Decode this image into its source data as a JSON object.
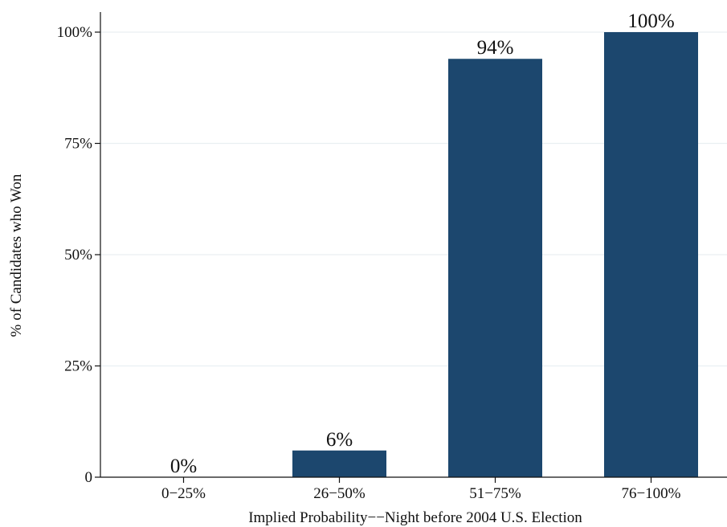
{
  "chart_data": {
    "type": "bar",
    "title": "",
    "xlabel": "Implied Probability−−Night before 2004 U.S. Election",
    "ylabel": "% of Candidates who Won",
    "categories": [
      "0−25%",
      "26−50%",
      "51−75%",
      "76−100%"
    ],
    "values": [
      0,
      6,
      94,
      100
    ],
    "data_labels": [
      "0%",
      "6%",
      "94%",
      "100%"
    ],
    "ylim": [
      0,
      100
    ],
    "yticks": [
      0,
      25,
      50,
      75,
      100
    ],
    "ytick_labels": [
      "0",
      "25%",
      "50%",
      "75%",
      "100%"
    ],
    "grid": true,
    "legend": "none",
    "bar_color": "#1c476e",
    "grid_color": "#e9eff2"
  }
}
